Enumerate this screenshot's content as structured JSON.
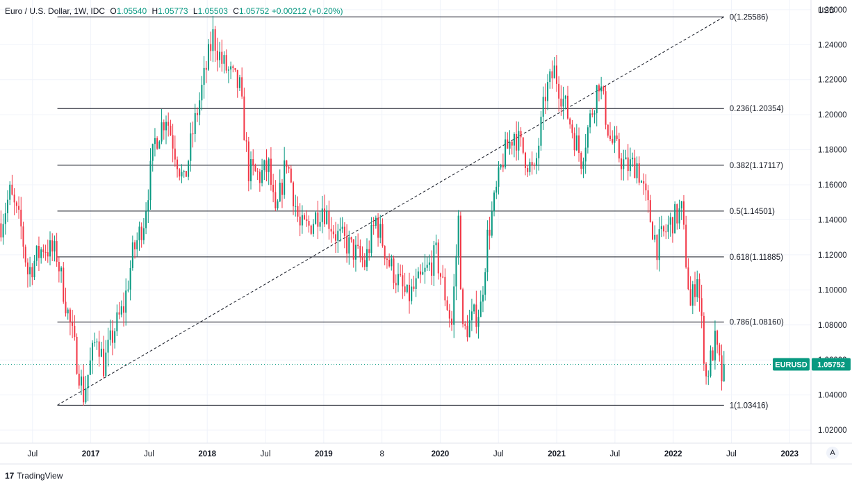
{
  "header": {
    "symbol": "Euro / U.S. Dollar, 1W, IDC",
    "open_label": "O",
    "open": "1.05540",
    "high_label": "H",
    "high": "1.05773",
    "low_label": "L",
    "low": "1.05503",
    "close_label": "C",
    "close": "1.05752",
    "change": "+0.00212 (+0.20%)"
  },
  "price_axis": {
    "currency": "USD",
    "ticks": [
      "1.26000",
      "1.24000",
      "1.22000",
      "1.20000",
      "1.18000",
      "1.16000",
      "1.14000",
      "1.12000",
      "1.10000",
      "1.08000",
      "1.06000",
      "1.04000",
      "1.02000"
    ]
  },
  "time_axis": {
    "ticks": [
      "Jul",
      "2017",
      "Jul",
      "2018",
      "Jul",
      "2019",
      "8",
      "2020",
      "Jul",
      "2021",
      "Jul",
      "2022",
      "Jul",
      "2023"
    ]
  },
  "badge": {
    "symbol": "EURUSD",
    "price": "1.05752"
  },
  "auto_button": "A",
  "logo": {
    "mark": "17",
    "text": "TradingView"
  },
  "colors": {
    "up": "#089981",
    "down": "#f23645",
    "grid": "#f0f3fa",
    "text": "#131722",
    "badge": "#089981"
  },
  "chart_data": {
    "type": "candlestick",
    "title": "Euro / U.S. Dollar, 1W, IDC",
    "ylabel": "USD",
    "ylim": [
      1.0125,
      1.2655
    ],
    "xlim": [
      "2016-04-01",
      "2023-03-20"
    ],
    "grid": true,
    "fib": {
      "start": {
        "date": "2017-01-02",
        "price": 1.03416
      },
      "end": {
        "date": "2022-06-20",
        "price": 1.25586
      },
      "line_start": "2016-09-28",
      "levels": [
        {
          "label": "0(1.25586)",
          "price": 1.25586
        },
        {
          "label": "0.236(1.20354)",
          "price": 1.20354
        },
        {
          "label": "0.382(1.17117)",
          "price": 1.17117
        },
        {
          "label": "0.5(1.14501)",
          "price": 1.14501
        },
        {
          "label": "0.618(1.11885)",
          "price": 1.11885
        },
        {
          "label": "0.786(1.08160)",
          "price": 1.0816
        },
        {
          "label": "1(1.03416)",
          "price": 1.03416
        }
      ]
    },
    "anchors": [
      [
        "2016-04-04",
        1.138
      ],
      [
        "2016-05-02",
        1.155
      ],
      [
        "2016-06-06",
        1.135
      ],
      [
        "2016-06-27",
        1.11
      ],
      [
        "2016-08-15",
        1.125
      ],
      [
        "2016-09-26",
        1.12
      ],
      [
        "2016-11-07",
        1.08
      ],
      [
        "2016-12-19",
        1.04
      ],
      [
        "2017-01-30",
        1.075
      ],
      [
        "2017-02-20",
        1.057
      ],
      [
        "2017-03-27",
        1.078
      ],
      [
        "2017-04-24",
        1.09
      ],
      [
        "2017-05-22",
        1.12
      ],
      [
        "2017-06-26",
        1.14
      ],
      [
        "2017-07-31",
        1.185
      ],
      [
        "2017-09-04",
        1.2
      ],
      [
        "2017-10-30",
        1.16
      ],
      [
        "2017-11-27",
        1.19
      ],
      [
        "2018-01-29",
        1.245
      ],
      [
        "2018-02-26",
        1.23
      ],
      [
        "2018-04-23",
        1.215
      ],
      [
        "2018-05-21",
        1.168
      ],
      [
        "2018-06-25",
        1.165
      ],
      [
        "2018-07-23",
        1.17
      ],
      [
        "2018-08-13",
        1.14
      ],
      [
        "2018-09-17",
        1.175
      ],
      [
        "2018-10-29",
        1.135
      ],
      [
        "2018-11-26",
        1.136
      ],
      [
        "2019-01-07",
        1.148
      ],
      [
        "2019-02-18",
        1.132
      ],
      [
        "2019-04-01",
        1.125
      ],
      [
        "2019-05-20",
        1.115
      ],
      [
        "2019-06-24",
        1.14
      ],
      [
        "2019-08-05",
        1.115
      ],
      [
        "2019-09-30",
        1.095
      ],
      [
        "2019-11-11",
        1.105
      ],
      [
        "2019-12-30",
        1.12
      ],
      [
        "2020-02-17",
        1.08
      ],
      [
        "2020-03-09",
        1.14
      ],
      [
        "2020-03-23",
        1.075
      ],
      [
        "2020-05-18",
        1.09
      ],
      [
        "2020-06-08",
        1.13
      ],
      [
        "2020-07-27",
        1.175
      ],
      [
        "2020-08-31",
        1.19
      ],
      [
        "2020-11-02",
        1.165
      ],
      [
        "2020-12-07",
        1.212
      ],
      [
        "2021-01-04",
        1.225
      ],
      [
        "2021-03-29",
        1.175
      ],
      [
        "2021-05-24",
        1.22
      ],
      [
        "2021-06-28",
        1.186
      ],
      [
        "2021-08-16",
        1.17
      ],
      [
        "2021-09-20",
        1.172
      ],
      [
        "2021-11-22",
        1.125
      ],
      [
        "2022-01-10",
        1.14
      ],
      [
        "2022-02-07",
        1.145
      ],
      [
        "2022-03-07",
        1.09
      ],
      [
        "2022-03-28",
        1.11
      ],
      [
        "2022-04-25",
        1.05
      ],
      [
        "2022-05-23",
        1.07
      ],
      [
        "2022-06-13",
        1.05
      ],
      [
        "2022-06-20",
        1.05752
      ]
    ]
  }
}
